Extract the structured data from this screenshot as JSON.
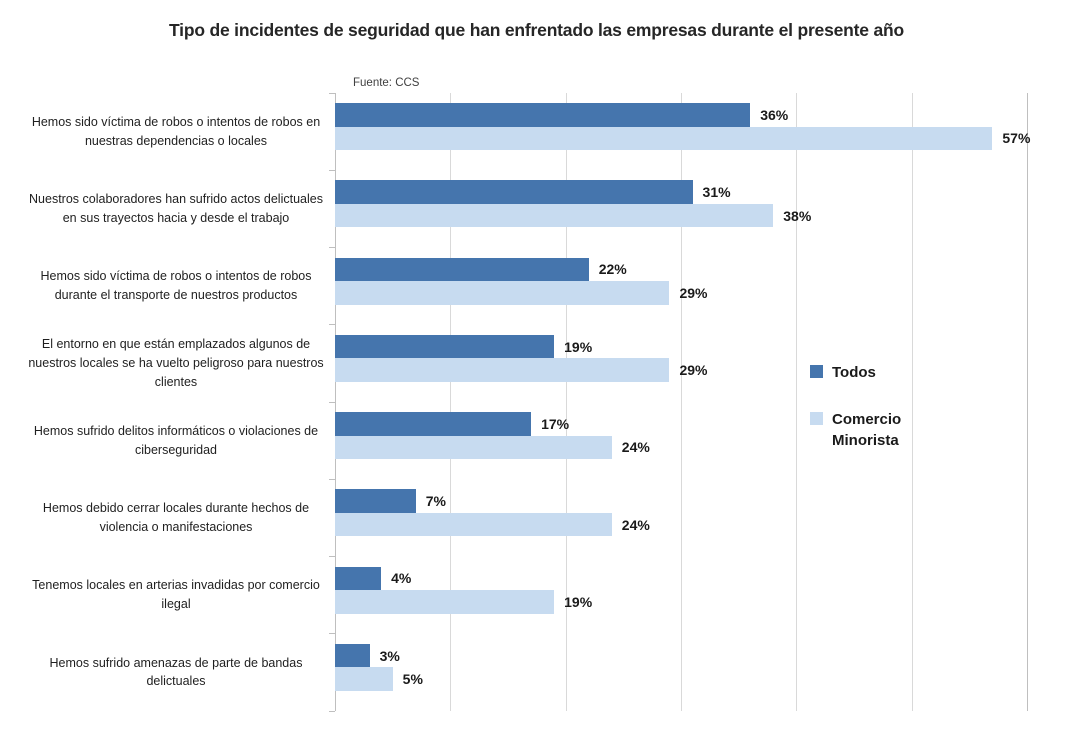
{
  "title": "Tipo de incidentes de seguridad que han enfrentado las empresas durante el presente año",
  "source": "Fuente: CCS",
  "legend": {
    "position": "right-inside"
  },
  "chart_data": {
    "type": "bar",
    "orientation": "horizontal",
    "title": "Tipo de incidentes de seguridad que han enfrentado las empresas durante el presente año",
    "source": "Fuente: CCS",
    "categories": [
      "Hemos sido víctima de robos o intentos de robos en nuestras dependencias o locales",
      "Nuestros colaboradores han sufrido actos delictuales en sus trayectos hacia y desde el trabajo",
      "Hemos sido víctima de robos o intentos de robos durante el transporte de nuestros productos",
      "El entorno en que están emplazados algunos de nuestros locales se ha vuelto peligroso para nuestros clientes",
      "Hemos sufrido delitos informáticos o violaciones de ciberseguridad",
      "Hemos debido cerrar locales durante hechos de violencia o manifestaciones",
      "Tenemos locales en arterias invadidas por comercio ilegal",
      "Hemos sufrido amenazas de parte de bandas delictuales"
    ],
    "series": [
      {
        "name": "Todos",
        "color": "#4575AD",
        "values": [
          36,
          31,
          22,
          19,
          17,
          7,
          4,
          3
        ]
      },
      {
        "name": "Comercio Minorista",
        "color": "#C7DBF0",
        "values": [
          57,
          38,
          29,
          29,
          24,
          24,
          19,
          5
        ]
      }
    ],
    "value_suffix": "%",
    "xlim": [
      0,
      60
    ],
    "gridline_step": 10,
    "grid": true,
    "grid_color": "#d9d9d9",
    "legend_position": "right-inside"
  }
}
